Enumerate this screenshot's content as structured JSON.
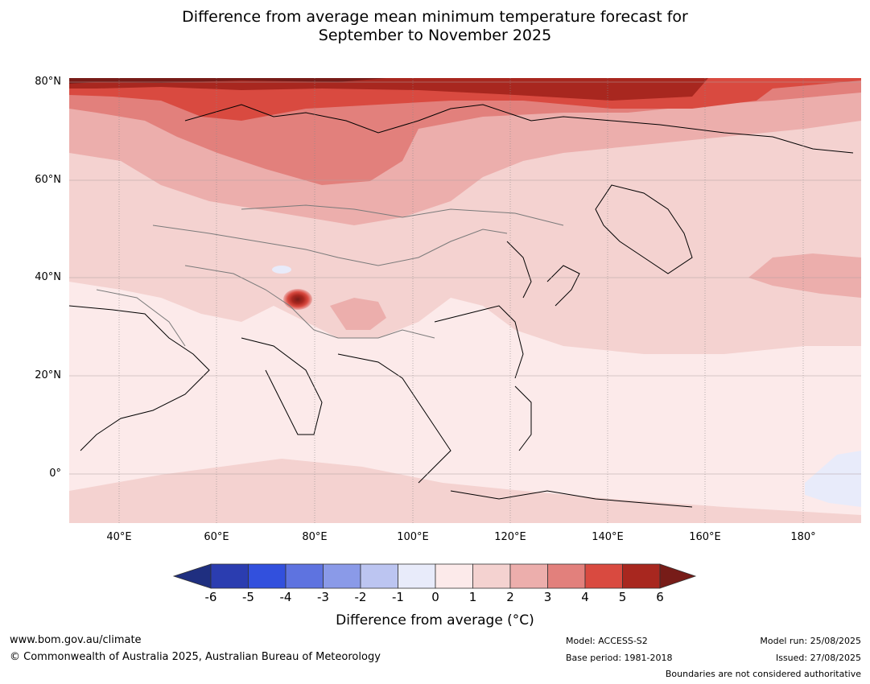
{
  "title": {
    "line1": "Difference from average mean minimum temperature forecast for",
    "line2": "September to November 2025"
  },
  "map": {
    "lat_labels": [
      "80°N",
      "60°N",
      "40°N",
      "20°N",
      "0°"
    ],
    "lon_labels": [
      "40°E",
      "60°E",
      "80°E",
      "100°E",
      "120°E",
      "140°E",
      "160°E",
      "180°"
    ]
  },
  "colorbar": {
    "ticks": [
      "-6",
      "-5",
      "-4",
      "-3",
      "-2",
      "-1",
      "0",
      "1",
      "2",
      "3",
      "4",
      "5",
      "6"
    ],
    "colors": [
      "#1f2f80",
      "#2b3db0",
      "#3250dd",
      "#5e73e0",
      "#8a9ae8",
      "#bcc5f1",
      "#e8ebfa",
      "#fceaea",
      "#f4d2d0",
      "#ecaeac",
      "#e2807c",
      "#d94a40",
      "#a8271f",
      "#771c18"
    ],
    "label": "Difference from average (°C)"
  },
  "footer": {
    "website": "www.bom.gov.au/climate",
    "copyright": "© Commonwealth of Australia 2025, Australian Bureau of Meteorology",
    "model": "Model: ACCESS-S2",
    "base_period": "Base period: 1981-2018",
    "model_run": "Model run: 25/08/2025",
    "issued": "Issued: 27/08/2025",
    "disclaimer": "Boundaries are not considered authoritative"
  }
}
